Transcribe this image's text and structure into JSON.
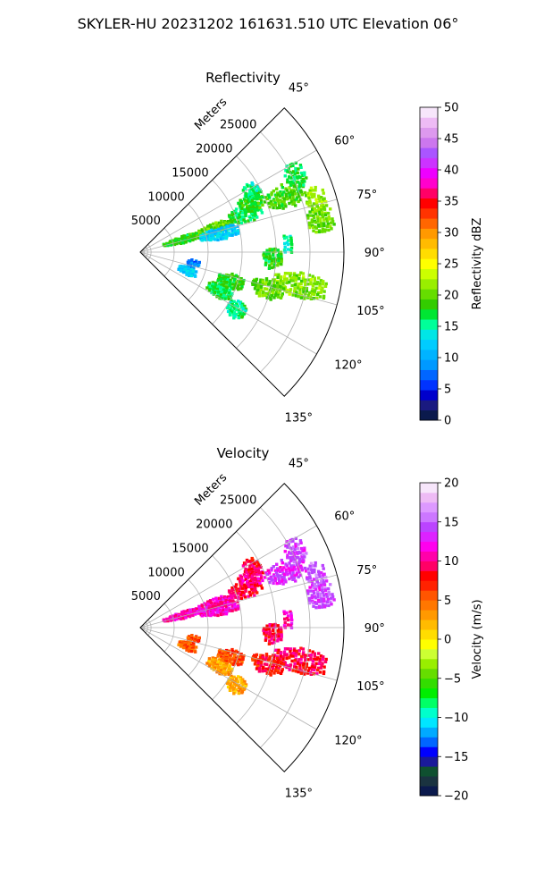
{
  "figure": {
    "title": "SKYLER-HU  20231202  161631.510 UTC Elevation 06°"
  },
  "chart_data": [
    {
      "type": "heatmap",
      "title": "Reflectivity",
      "radial_label": "Meters",
      "range_ticks": [
        "5000",
        "10000",
        "15000",
        "20000",
        "25000"
      ],
      "range_values": [
        5000,
        10000,
        15000,
        20000,
        25000
      ],
      "range_max": 30000,
      "azimuth_ticks": [
        "45°",
        "60°",
        "75°",
        "90°",
        "105°",
        "120°",
        "135°"
      ],
      "azimuth_values": [
        45,
        60,
        75,
        90,
        105,
        120,
        135
      ],
      "azimuth_range": [
        45,
        135
      ],
      "colorbar": {
        "label": "Reflectivity dBZ",
        "ticks": [
          "0",
          "5",
          "10",
          "15",
          "20",
          "25",
          "30",
          "35",
          "40",
          "45",
          "50"
        ],
        "min": 0,
        "max": 50,
        "colors": [
          "#0b1a4d",
          "#1a1a80",
          "#0000cc",
          "#0033ff",
          "#0066ff",
          "#0099ff",
          "#00b3ff",
          "#00ccff",
          "#00e6e6",
          "#00ff99",
          "#00e633",
          "#33cc00",
          "#66dd00",
          "#99ee00",
          "#ccff00",
          "#ffff00",
          "#ffdd00",
          "#ffbb00",
          "#ff9900",
          "#ff6600",
          "#ff3300",
          "#ff0000",
          "#ff0066",
          "#ff00cc",
          "#ee00ff",
          "#cc33ff",
          "#aa55ff",
          "#cc77ee",
          "#dd99ee",
          "#eebbf5",
          "#f7e6fb"
        ]
      },
      "echoes": [
        {
          "az": 74,
          "r0": 3500,
          "r1": 9000,
          "value": 18
        },
        {
          "az": 73,
          "r0": 9000,
          "r1": 14000,
          "value": 20
        },
        {
          "az": 77,
          "r0": 9000,
          "r1": 15000,
          "value": 12
        },
        {
          "az": 70,
          "r0": 14000,
          "r1": 19000,
          "value": 17
        },
        {
          "az": 66,
          "r0": 16000,
          "r1": 20000,
          "value": 18
        },
        {
          "az": 62,
          "r0": 17500,
          "r1": 20000,
          "value": 16
        },
        {
          "az": 69,
          "r0": 20000,
          "r1": 26000,
          "value": 19
        },
        {
          "az": 64,
          "r0": 24000,
          "r1": 27000,
          "value": 17
        },
        {
          "az": 74,
          "r0": 25500,
          "r1": 28500,
          "value": 22
        },
        {
          "az": 80,
          "r0": 25000,
          "r1": 29000,
          "value": 20
        },
        {
          "az": 87,
          "r0": 21000,
          "r1": 22500,
          "value": 15
        },
        {
          "az": 93,
          "r0": 18000,
          "r1": 21000,
          "value": 18
        },
        {
          "az": 102,
          "r0": 20000,
          "r1": 28000,
          "value": 21
        },
        {
          "az": 106,
          "r0": 17000,
          "r1": 22000,
          "value": 20
        },
        {
          "az": 108,
          "r0": 12000,
          "r1": 16000,
          "value": 18
        },
        {
          "az": 116,
          "r0": 11000,
          "r1": 15000,
          "value": 17
        },
        {
          "az": 121,
          "r0": 15000,
          "r1": 18000,
          "value": 16
        },
        {
          "az": 103,
          "r0": 7000,
          "r1": 9000,
          "value": 8
        },
        {
          "az": 112,
          "r0": 6000,
          "r1": 9000,
          "value": 12
        }
      ]
    },
    {
      "type": "heatmap",
      "title": "Velocity",
      "radial_label": "Meters",
      "range_ticks": [
        "5000",
        "10000",
        "15000",
        "20000",
        "25000"
      ],
      "range_values": [
        5000,
        10000,
        15000,
        20000,
        25000
      ],
      "range_max": 30000,
      "azimuth_ticks": [
        "45°",
        "60°",
        "75°",
        "90°",
        "105°",
        "120°",
        "135°"
      ],
      "azimuth_values": [
        45,
        60,
        75,
        90,
        105,
        120,
        135
      ],
      "azimuth_range": [
        45,
        135
      ],
      "colorbar": {
        "label": "Velocity (m/s)",
        "ticks": [
          "−20",
          "−15",
          "−10",
          "−5",
          "0",
          "5",
          "10",
          "15",
          "20"
        ],
        "min": -20,
        "max": 20,
        "colors": [
          "#0b1a4d",
          "#1a3340",
          "#0f5030",
          "#1a1a99",
          "#0000ff",
          "#0066ff",
          "#00aaff",
          "#00e6ff",
          "#00ffcc",
          "#00ff66",
          "#00ee00",
          "#33dd00",
          "#66dd00",
          "#99ee00",
          "#ccff33",
          "#ffff00",
          "#ffdd00",
          "#ffbb00",
          "#ff9900",
          "#ff7700",
          "#ff5500",
          "#ff2200",
          "#ff0000",
          "#ff0066",
          "#ff00aa",
          "#ff00ee",
          "#dd22ff",
          "#bb44ff",
          "#cc77ff",
          "#dd99ff",
          "#eebbf5",
          "#f7e6fb"
        ]
      },
      "echoes": [
        {
          "az": 74,
          "r0": 3500,
          "r1": 9000,
          "value": 11
        },
        {
          "az": 73,
          "r0": 9000,
          "r1": 14000,
          "value": 11
        },
        {
          "az": 77,
          "r0": 9000,
          "r1": 15000,
          "value": 11
        },
        {
          "az": 70,
          "r0": 14000,
          "r1": 19000,
          "value": 9
        },
        {
          "az": 66,
          "r0": 16000,
          "r1": 20000,
          "value": 10
        },
        {
          "az": 62,
          "r0": 17500,
          "r1": 20000,
          "value": 9
        },
        {
          "az": 69,
          "r0": 20000,
          "r1": 26000,
          "value": 13
        },
        {
          "az": 64,
          "r0": 24000,
          "r1": 27000,
          "value": 14
        },
        {
          "az": 74,
          "r0": 25500,
          "r1": 28500,
          "value": 15
        },
        {
          "az": 80,
          "r0": 25000,
          "r1": 29000,
          "value": 14
        },
        {
          "az": 87,
          "r0": 21000,
          "r1": 22500,
          "value": 11
        },
        {
          "az": 93,
          "r0": 18000,
          "r1": 21000,
          "value": 9
        },
        {
          "az": 102,
          "r0": 20000,
          "r1": 28000,
          "value": 9
        },
        {
          "az": 106,
          "r0": 17000,
          "r1": 22000,
          "value": 8
        },
        {
          "az": 108,
          "r0": 12000,
          "r1": 16000,
          "value": 6
        },
        {
          "az": 116,
          "r0": 11000,
          "r1": 15000,
          "value": 3
        },
        {
          "az": 121,
          "r0": 15000,
          "r1": 18000,
          "value": 3
        },
        {
          "az": 103,
          "r0": 7000,
          "r1": 9000,
          "value": 6
        },
        {
          "az": 112,
          "r0": 6000,
          "r1": 9000,
          "value": 5
        }
      ]
    }
  ]
}
